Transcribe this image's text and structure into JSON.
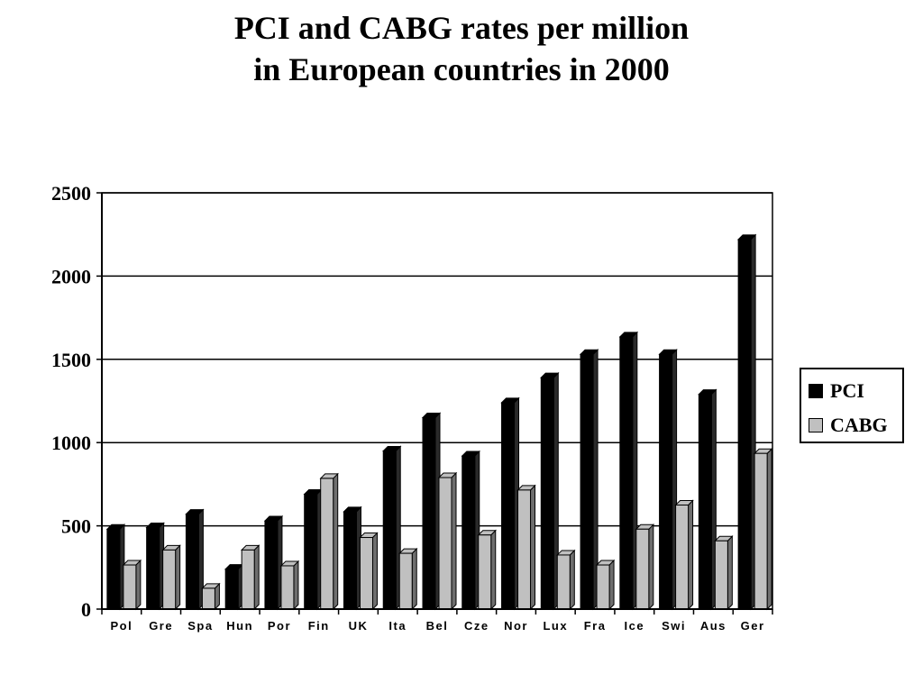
{
  "title_line1": "PCI and CABG rates per million",
  "title_line2": "in European countries in 2000",
  "colors": {
    "pci": "#000000",
    "cabg": "#c0c0c0",
    "cabg_side": "#6e6e6e",
    "pci_side": "#2a2a2a"
  },
  "chart_data": {
    "type": "bar",
    "title": "PCI and CABG rates per million in European countries in 2000",
    "categories": [
      "Pol",
      "Gre",
      "Spa",
      "Hun",
      "Por",
      "Fin",
      "UK",
      "Ita",
      "Bel",
      "Cze",
      "Nor",
      "Lux",
      "Fra",
      "Ice",
      "Swi",
      "Aus",
      "Ger"
    ],
    "series": [
      {
        "name": "PCI",
        "values": [
          480,
          490,
          570,
          240,
          530,
          690,
          585,
          950,
          1150,
          920,
          1240,
          1390,
          1530,
          1635,
          1530,
          1290,
          2220
        ]
      },
      {
        "name": "CABG",
        "values": [
          265,
          355,
          125,
          355,
          260,
          785,
          430,
          335,
          790,
          445,
          715,
          325,
          265,
          480,
          625,
          410,
          935
        ]
      }
    ],
    "yticks": [
      0,
      500,
      1000,
      1500,
      2000,
      2500
    ],
    "ylim": [
      0,
      2500
    ],
    "grid": true,
    "legend_position": "right"
  }
}
